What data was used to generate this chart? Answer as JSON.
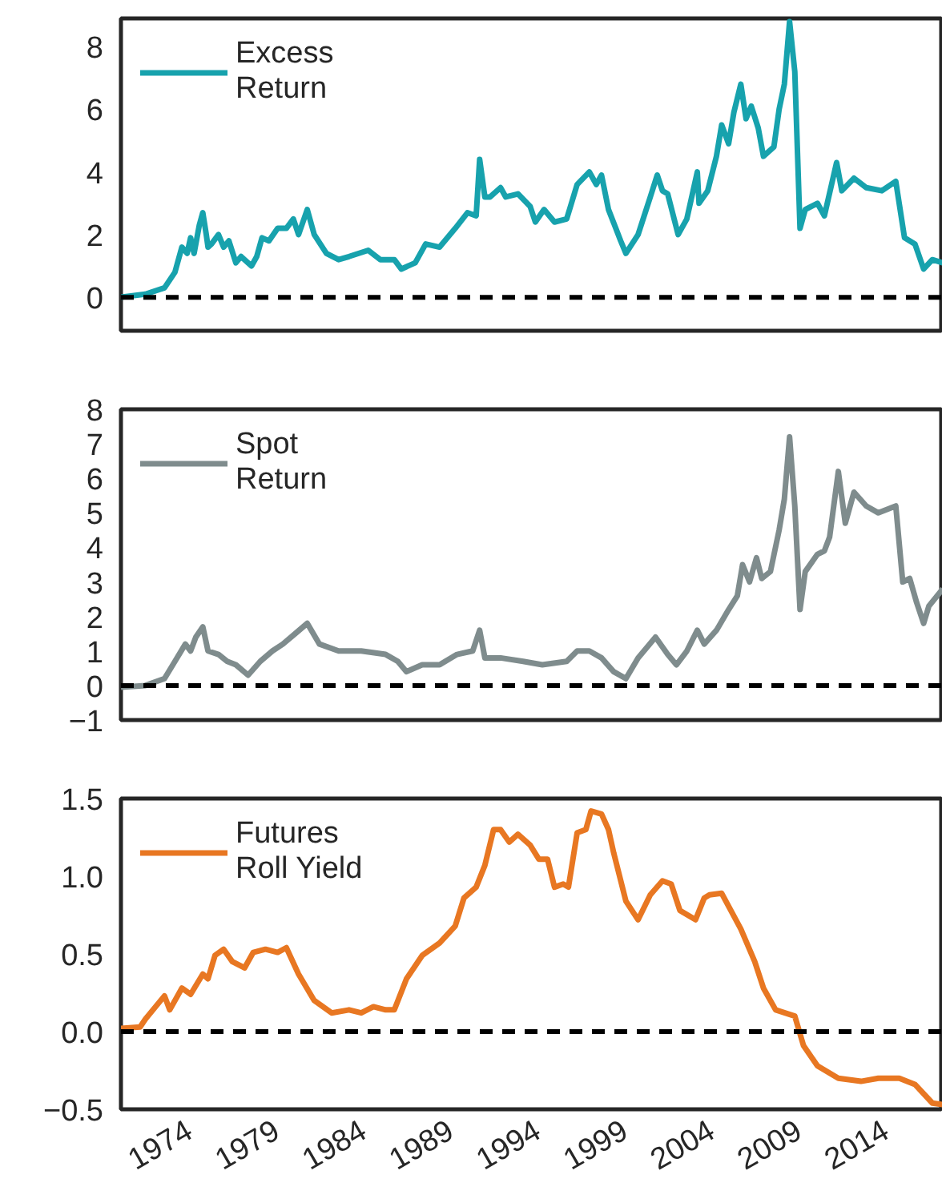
{
  "chart_data": [
    {
      "type": "line",
      "x": [
        1970.1,
        1971.5,
        1972.6,
        1973.2,
        1973.6,
        1973.9,
        1974.1,
        1974.3,
        1974.6,
        1974.8,
        1975.0,
        1975.1,
        1975.3,
        1975.7,
        1976.0,
        1976.3,
        1976.7,
        1977.0,
        1977.6,
        1977.9,
        1978.2,
        1978.6,
        1979.1,
        1979.6,
        1980.0,
        1980.3,
        1980.8,
        1981.2,
        1981.9,
        1982.6,
        1983.2,
        1984.3,
        1985.0,
        1985.8,
        1986.2,
        1987.0,
        1987.6,
        1988.4,
        1989.3,
        1990.0,
        1990.5,
        1990.7,
        1991.0,
        1991.3,
        1991.9,
        1992.2,
        1992.9,
        1993.6,
        1993.9,
        1994.4,
        1995.0,
        1995.7,
        1996.3,
        1997.0,
        1997.4,
        1997.7,
        1998.1,
        1998.8,
        1999.1,
        1999.8,
        2000.5,
        2000.9,
        2001.2,
        2001.5,
        2002.1,
        2002.6,
        2003.2,
        2003.3,
        2003.8,
        2004.3,
        2004.6,
        2005.0,
        2005.3,
        2005.7,
        2006.0,
        2006.3,
        2006.7,
        2007.0,
        2007.6,
        2007.9,
        2008.2,
        2008.5,
        2008.8,
        2009.1,
        2009.4,
        2010.1,
        2010.5,
        2011.2,
        2011.5,
        2012.2,
        2012.9,
        2013.8,
        2014.6,
        2015.1,
        2015.7,
        2016.2,
        2016.7,
        2017.3
      ],
      "series": [
        {
          "name": "Excess\nReturn",
          "color": "#17a2ad",
          "values": [
            0.0,
            0.1,
            0.3,
            0.8,
            1.6,
            1.4,
            1.9,
            1.4,
            2.3,
            2.7,
            2.0,
            1.6,
            1.7,
            2.0,
            1.6,
            1.8,
            1.1,
            1.3,
            1.0,
            1.3,
            1.9,
            1.8,
            2.2,
            2.2,
            2.5,
            2.0,
            2.8,
            2.0,
            1.4,
            1.2,
            1.3,
            1.5,
            1.2,
            1.2,
            0.9,
            1.1,
            1.7,
            1.6,
            2.2,
            2.7,
            2.6,
            4.4,
            3.2,
            3.2,
            3.5,
            3.2,
            3.3,
            2.9,
            2.4,
            2.8,
            2.4,
            2.5,
            3.6,
            4.0,
            3.6,
            3.9,
            2.8,
            1.8,
            1.4,
            2.0,
            3.2,
            3.9,
            3.4,
            3.3,
            2.0,
            2.5,
            4.0,
            3.0,
            3.4,
            4.5,
            5.5,
            4.9,
            5.9,
            6.8,
            5.7,
            6.1,
            5.4,
            4.5,
            4.8,
            6.0,
            6.8,
            8.8,
            7.2,
            2.2,
            2.8,
            3.0,
            2.6,
            4.3,
            3.4,
            3.8,
            3.5,
            3.4,
            3.7,
            1.9,
            1.7,
            0.9,
            1.2,
            1.1
          ]
        }
      ],
      "xlim": [
        1970.1,
        2017.3
      ],
      "xticks": [
        1974,
        1979,
        1984,
        1989,
        1994,
        1999,
        2004,
        2009,
        2014
      ],
      "ylim": [
        -1.07,
        8.9
      ],
      "yticks": [
        0,
        2,
        4,
        6,
        8
      ],
      "tick_labels": "y",
      "grid": false,
      "legend": "top left",
      "ref_lines": [
        {
          "axis": "y",
          "value": 0,
          "color": "#000000",
          "line_style": "dashed"
        }
      ]
    },
    {
      "type": "line",
      "x": [
        1970.1,
        1971.5,
        1972.6,
        1973.2,
        1973.8,
        1974.1,
        1974.4,
        1974.8,
        1975.1,
        1975.7,
        1976.2,
        1976.7,
        1977.4,
        1978.1,
        1978.8,
        1979.4,
        1980.1,
        1980.8,
        1981.5,
        1982.6,
        1983.9,
        1985.3,
        1986.0,
        1986.5,
        1987.4,
        1988.4,
        1989.4,
        1990.3,
        1990.7,
        1991.0,
        1991.9,
        1993.2,
        1994.3,
        1995.7,
        1996.3,
        1997.0,
        1997.7,
        1998.4,
        1999.1,
        1999.8,
        2000.8,
        2001.5,
        2002.0,
        2002.6,
        2003.2,
        2003.6,
        2004.3,
        2005.0,
        2005.5,
        2005.8,
        2006.2,
        2006.6,
        2006.9,
        2007.4,
        2007.9,
        2008.2,
        2008.5,
        2008.8,
        2009.1,
        2009.4,
        2010.1,
        2010.5,
        2010.8,
        2011.3,
        2011.7,
        2012.2,
        2012.9,
        2013.6,
        2014.1,
        2014.6,
        2015.0,
        2015.4,
        2015.8,
        2016.2,
        2016.5,
        2017.3
      ],
      "series": [
        {
          "name": "Spot\nReturn",
          "color": "#7f8c8d",
          "values": [
            -0.05,
            0.0,
            0.2,
            0.7,
            1.2,
            1.0,
            1.4,
            1.7,
            1.0,
            0.9,
            0.7,
            0.6,
            0.3,
            0.7,
            1.0,
            1.2,
            1.5,
            1.8,
            1.2,
            1.0,
            1.0,
            0.9,
            0.7,
            0.4,
            0.6,
            0.6,
            0.9,
            1.0,
            1.6,
            0.8,
            0.8,
            0.7,
            0.6,
            0.7,
            1.0,
            1.0,
            0.8,
            0.4,
            0.2,
            0.8,
            1.4,
            0.9,
            0.6,
            1.0,
            1.6,
            1.2,
            1.6,
            2.2,
            2.6,
            3.5,
            3.0,
            3.7,
            3.1,
            3.3,
            4.5,
            5.4,
            7.2,
            5.2,
            2.2,
            3.3,
            3.8,
            3.9,
            4.3,
            6.2,
            4.7,
            5.6,
            5.2,
            5.0,
            5.1,
            5.2,
            3.0,
            3.1,
            2.4,
            1.8,
            2.3,
            2.8
          ]
        }
      ],
      "xlim": [
        1970.1,
        2017.3
      ],
      "xticks": [
        1974,
        1979,
        1984,
        1989,
        1994,
        1999,
        2004,
        2009,
        2014
      ],
      "ylim": [
        -1,
        8
      ],
      "yticks": [
        -1,
        0,
        1,
        2,
        3,
        4,
        5,
        6,
        7,
        8
      ],
      "tick_labels": "y",
      "grid": false,
      "legend": "top left",
      "ref_lines": [
        {
          "axis": "y",
          "value": 0,
          "color": "#000000",
          "line_style": "dashed"
        }
      ]
    },
    {
      "type": "line",
      "x": [
        1970.1,
        1971.2,
        1971.5,
        1972.6,
        1972.9,
        1973.6,
        1974.1,
        1974.8,
        1975.1,
        1975.5,
        1976.0,
        1976.5,
        1977.2,
        1977.7,
        1978.4,
        1979.1,
        1979.6,
        1980.3,
        1981.2,
        1982.2,
        1983.2,
        1983.9,
        1984.6,
        1985.3,
        1985.8,
        1986.5,
        1987.4,
        1988.4,
        1989.3,
        1989.8,
        1990.5,
        1991.0,
        1991.5,
        1991.9,
        1992.4,
        1992.9,
        1993.6,
        1994.1,
        1994.6,
        1995.0,
        1995.5,
        1995.8,
        1996.3,
        1996.8,
        1997.1,
        1997.7,
        1998.1,
        1998.4,
        1999.1,
        1999.8,
        2000.5,
        2001.2,
        2001.7,
        2002.2,
        2003.1,
        2003.6,
        2003.9,
        2004.6,
        2005.7,
        2006.5,
        2007.0,
        2007.7,
        2008.8,
        2009.3,
        2010.1,
        2011.3,
        2012.6,
        2013.6,
        2014.8,
        2015.7,
        2016.7,
        2017.3
      ],
      "series": [
        {
          "name": "Futures\nRoll Yield",
          "color": "#e87722",
          "values": [
            0.02,
            0.03,
            0.08,
            0.23,
            0.14,
            0.28,
            0.24,
            0.37,
            0.34,
            0.49,
            0.53,
            0.45,
            0.41,
            0.51,
            0.53,
            0.51,
            0.54,
            0.37,
            0.2,
            0.12,
            0.14,
            0.12,
            0.16,
            0.14,
            0.14,
            0.34,
            0.49,
            0.57,
            0.68,
            0.86,
            0.93,
            1.07,
            1.3,
            1.3,
            1.22,
            1.27,
            1.2,
            1.11,
            1.11,
            0.93,
            0.95,
            0.93,
            1.28,
            1.3,
            1.42,
            1.4,
            1.3,
            1.15,
            0.84,
            0.72,
            0.88,
            0.97,
            0.95,
            0.78,
            0.72,
            0.86,
            0.88,
            0.89,
            0.66,
            0.45,
            0.28,
            0.14,
            0.1,
            -0.09,
            -0.22,
            -0.3,
            -0.32,
            -0.3,
            -0.3,
            -0.34,
            -0.46,
            -0.47
          ]
        }
      ],
      "xlim": [
        1970.1,
        2017.3
      ],
      "xticks": [
        1974,
        1979,
        1984,
        1989,
        1994,
        1999,
        2004,
        2009,
        2014
      ],
      "ylim": [
        -0.5,
        1.5
      ],
      "yticks": [
        {
          "value": -0.5,
          "label": "−0.5"
        },
        {
          "value": 0,
          "label": "0.0"
        },
        0.5,
        {
          "value": 1,
          "label": "1.0"
        },
        1.5
      ],
      "grid": false,
      "legend": "top left",
      "ref_lines": [
        {
          "axis": "y",
          "value": 0,
          "color": "#000000",
          "line_style": "dashed"
        }
      ]
    }
  ]
}
